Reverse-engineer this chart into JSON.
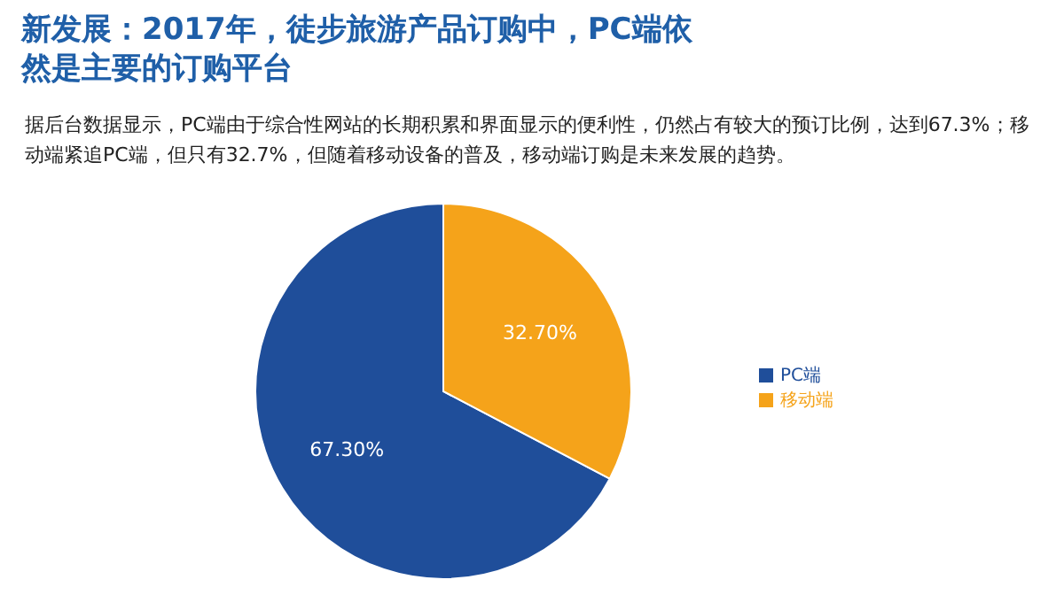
{
  "chart_data": {
    "type": "pie",
    "title": "新发展：2017年，徒步旅游产品订购中，PC端依然是主要的订购平台",
    "subtitle": "据后台数据显示，PC端由于综合性网站的长期积累和界面显示的便利性，仍然占有较大的预订比例，达到67.3%；移动端紧追PC端，但只有32.7%，但随着移动设备的普及，移动端订购是未来发展的趋势。",
    "categories": [
      "PC端",
      "移动端"
    ],
    "values": [
      67.3,
      32.7
    ],
    "colors": [
      "#1f4e9a",
      "#f5a31a"
    ],
    "value_labels": [
      "67.30%",
      "32.70%"
    ],
    "legend": "right"
  }
}
